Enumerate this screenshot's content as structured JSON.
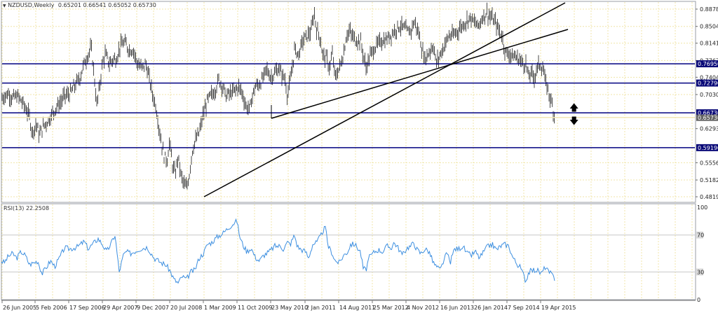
{
  "header": {
    "dropdown_icon": "triangle-down-icon",
    "symbol": "NZDUSD,Weekly",
    "open": "0.65201",
    "high": "0.66541",
    "low": "0.65052",
    "close": "0.65730"
  },
  "indicator": {
    "label": "RSI(13) 22.2508",
    "name": "RSI(13)",
    "value": "22.2508",
    "levels": [
      "100",
      "70",
      "30",
      "0"
    ]
  },
  "colors": {
    "background": "#ffffff",
    "grid": "#f0e6a8",
    "bars": "#4a4a4a",
    "hline": "#000080",
    "trendline": "#000000",
    "rsi": "#3d8fe0",
    "rsi_level": "#c8c8c8",
    "axis": "#9a9ea4",
    "label_bg": "#0a0a78",
    "price_label_bg": "#646464"
  },
  "chart_data": [
    {
      "type": "bar",
      "subtype": "ohlc",
      "title": "NZDUSD,Weekly",
      "ohlc_last": {
        "open": 0.65201,
        "high": 0.66541,
        "low": 0.65052,
        "close": 0.6573
      },
      "y_axis_ticks": [
        "0.88780",
        "0.85040",
        "0.81410",
        "0.77670",
        "0.74040",
        "0.70300",
        "0.62930",
        "0.55560",
        "0.51820",
        "0.48190"
      ],
      "ylim": [
        0.4819,
        0.8878
      ],
      "x_axis_ticks": [
        "26 Jun 2005",
        "5 Feb 2006",
        "17 Sep 2006",
        "29 Apr 2007",
        "9 Dec 2007",
        "20 Jul 2008",
        "1 Mar 2009",
        "11 Oct 2009",
        "23 May 2010",
        "2 Jan 2011",
        "14 Aug 2011",
        "25 Mar 2012",
        "4 Nov 2012",
        "16 Jun 2013",
        "26 Jan 2014",
        "7 Sep 2014",
        "19 Apr 2015"
      ],
      "horizontal_lines": [
        {
          "label": "0.76950",
          "value": 0.7695
        },
        {
          "label": "0.72790",
          "value": 0.7279
        },
        {
          "label": "0.66730",
          "value": 0.6673
        },
        {
          "label": "0.59190",
          "value": 0.5919
        }
      ],
      "current_price_label": "0.65730",
      "trendlines": [
        {
          "from_date": "Mar 2009",
          "from_price": 0.4875,
          "to_date": "mid 2015 (extended)",
          "to_price": 0.905
        },
        {
          "from_date": "May 2010",
          "from_price": 0.661,
          "to_date": "mid 2015 (extended)",
          "to_price": 0.845
        }
      ],
      "annotations": [
        "up-arrow at 0.6673 level",
        "down-arrow below 0.6673 level"
      ],
      "close_path": [
        [
          "2005-06",
          0.695
        ],
        [
          "2005-09",
          0.705
        ],
        [
          "2005-12",
          0.7
        ],
        [
          "2006-02",
          0.69
        ],
        [
          "2006-04",
          0.628
        ],
        [
          "2006-06",
          0.615
        ],
        [
          "2006-09",
          0.645
        ],
        [
          "2006-12",
          0.68
        ],
        [
          "2007-03",
          0.7
        ],
        [
          "2007-05",
          0.745
        ],
        [
          "2007-07",
          0.8
        ],
        [
          "2007-08",
          0.69
        ],
        [
          "2007-10",
          0.77
        ],
        [
          "2007-12",
          0.775
        ],
        [
          "2008-02",
          0.815
        ],
        [
          "2008-04",
          0.8
        ],
        [
          "2008-07",
          0.765
        ],
        [
          "2008-09",
          0.7
        ],
        [
          "2008-11",
          0.56
        ],
        [
          "2008-12",
          0.57
        ],
        [
          "2009-02",
          0.51
        ],
        [
          "2009-03",
          0.5
        ],
        [
          "2009-05",
          0.6
        ],
        [
          "2009-08",
          0.68
        ],
        [
          "2009-10",
          0.74
        ],
        [
          "2009-12",
          0.71
        ],
        [
          "2010-02",
          0.7
        ],
        [
          "2010-04",
          0.72
        ],
        [
          "2010-06",
          0.665
        ],
        [
          "2010-08",
          0.725
        ],
        [
          "2010-11",
          0.77
        ],
        [
          "2011-01",
          0.76
        ],
        [
          "2011-03",
          0.74
        ],
        [
          "2011-05",
          0.81
        ],
        [
          "2011-07",
          0.87
        ],
        [
          "2011-09",
          0.78
        ],
        [
          "2011-11",
          0.75
        ],
        [
          "2012-02",
          0.83
        ],
        [
          "2012-05",
          0.76
        ],
        [
          "2012-07",
          0.81
        ],
        [
          "2012-10",
          0.83
        ],
        [
          "2013-01",
          0.85
        ],
        [
          "2013-04",
          0.86
        ],
        [
          "2013-06",
          0.78
        ],
        [
          "2013-08",
          0.785
        ],
        [
          "2013-10",
          0.83
        ],
        [
          "2013-12",
          0.82
        ],
        [
          "2014-03",
          0.86
        ],
        [
          "2014-07",
          0.875
        ],
        [
          "2014-09",
          0.79
        ],
        [
          "2014-12",
          0.78
        ],
        [
          "2015-01",
          0.74
        ],
        [
          "2015-03",
          0.76
        ],
        [
          "2015-04",
          0.755
        ],
        [
          "2015-06",
          0.68
        ],
        [
          "2015-07",
          0.657
        ]
      ]
    },
    {
      "type": "line",
      "title": "RSI(13) 22.2508",
      "ylim": [
        0,
        100
      ],
      "levels": [
        30,
        70
      ],
      "y_axis_ticks": [
        "100",
        "70",
        "30",
        "0"
      ],
      "x": [
        "2005-06",
        "2006-02",
        "2006-06",
        "2007-02",
        "2007-06",
        "2007-11",
        "2008-03",
        "2008-07",
        "2008-10",
        "2009-01",
        "2009-04",
        "2009-08",
        "2009-11",
        "2010-03",
        "2010-06",
        "2010-10",
        "2011-01",
        "2011-05",
        "2011-08",
        "2011-11",
        "2012-03",
        "2012-06",
        "2012-10",
        "2013-02",
        "2013-04",
        "2013-07",
        "2013-10",
        "2014-01",
        "2014-05",
        "2014-08",
        "2014-11",
        "2015-01",
        "2015-03",
        "2015-05",
        "2015-07"
      ],
      "values": [
        55,
        60,
        35,
        62,
        78,
        65,
        55,
        40,
        18,
        25,
        50,
        62,
        82,
        55,
        50,
        58,
        68,
        78,
        50,
        55,
        50,
        25,
        55,
        60,
        58,
        40,
        55,
        62,
        65,
        30,
        42,
        38,
        50,
        30,
        22.25
      ]
    }
  ],
  "price_path": [
    [
      0,
      0.69
    ],
    [
      6,
      0.7
    ],
    [
      12,
      0.705
    ],
    [
      18,
      0.695
    ],
    [
      24,
      0.7
    ],
    [
      30,
      0.69
    ],
    [
      36,
      0.675
    ],
    [
      42,
      0.655
    ],
    [
      46,
      0.62
    ],
    [
      52,
      0.64
    ],
    [
      56,
      0.615
    ],
    [
      62,
      0.635
    ],
    [
      68,
      0.645
    ],
    [
      74,
      0.66
    ],
    [
      80,
      0.675
    ],
    [
      86,
      0.685
    ],
    [
      92,
      0.7
    ],
    [
      100,
      0.705
    ],
    [
      108,
      0.725
    ],
    [
      114,
      0.74
    ],
    [
      120,
      0.77
    ],
    [
      126,
      0.79
    ],
    [
      130,
      0.805
    ],
    [
      134,
      0.75
    ],
    [
      138,
      0.68
    ],
    [
      142,
      0.72
    ],
    [
      146,
      0.77
    ],
    [
      150,
      0.79
    ],
    [
      156,
      0.77
    ],
    [
      162,
      0.78
    ],
    [
      166,
      0.78
    ],
    [
      172,
      0.81
    ],
    [
      178,
      0.815
    ],
    [
      184,
      0.8
    ],
    [
      190,
      0.8
    ],
    [
      196,
      0.77
    ],
    [
      202,
      0.76
    ],
    [
      208,
      0.77
    ],
    [
      214,
      0.73
    ],
    [
      218,
      0.7
    ],
    [
      222,
      0.68
    ],
    [
      226,
      0.64
    ],
    [
      230,
      0.6
    ],
    [
      234,
      0.57
    ],
    [
      238,
      0.56
    ],
    [
      242,
      0.6
    ],
    [
      246,
      0.55
    ],
    [
      250,
      0.53
    ],
    [
      254,
      0.57
    ],
    [
      258,
      0.53
    ],
    [
      262,
      0.51
    ],
    [
      266,
      0.5
    ],
    [
      270,
      0.53
    ],
    [
      274,
      0.58
    ],
    [
      278,
      0.6
    ],
    [
      284,
      0.62
    ],
    [
      290,
      0.66
    ],
    [
      296,
      0.69
    ],
    [
      300,
      0.7
    ],
    [
      306,
      0.71
    ],
    [
      312,
      0.735
    ],
    [
      318,
      0.72
    ],
    [
      322,
      0.7
    ],
    [
      328,
      0.705
    ],
    [
      334,
      0.71
    ],
    [
      340,
      0.72
    ],
    [
      346,
      0.705
    ],
    [
      350,
      0.68
    ],
    [
      356,
      0.67
    ],
    [
      360,
      0.7
    ],
    [
      364,
      0.72
    ],
    [
      370,
      0.725
    ],
    [
      376,
      0.74
    ],
    [
      380,
      0.76
    ],
    [
      386,
      0.74
    ],
    [
      392,
      0.75
    ],
    [
      398,
      0.76
    ],
    [
      402,
      0.745
    ],
    [
      406,
      0.74
    ],
    [
      410,
      0.7
    ],
    [
      416,
      0.75
    ],
    [
      420,
      0.8
    ],
    [
      426,
      0.79
    ],
    [
      432,
      0.82
    ],
    [
      438,
      0.83
    ],
    [
      444,
      0.84
    ],
    [
      448,
      0.88
    ],
    [
      452,
      0.84
    ],
    [
      456,
      0.83
    ],
    [
      460,
      0.79
    ],
    [
      466,
      0.78
    ],
    [
      470,
      0.76
    ],
    [
      474,
      0.79
    ],
    [
      478,
      0.74
    ],
    [
      484,
      0.76
    ],
    [
      490,
      0.79
    ],
    [
      494,
      0.83
    ],
    [
      498,
      0.84
    ],
    [
      502,
      0.83
    ],
    [
      508,
      0.82
    ],
    [
      514,
      0.82
    ],
    [
      518,
      0.79
    ],
    [
      522,
      0.76
    ],
    [
      526,
      0.78
    ],
    [
      532,
      0.8
    ],
    [
      538,
      0.81
    ],
    [
      544,
      0.82
    ],
    [
      550,
      0.82
    ],
    [
      556,
      0.83
    ],
    [
      562,
      0.84
    ],
    [
      568,
      0.85
    ],
    [
      574,
      0.85
    ],
    [
      580,
      0.84
    ],
    [
      586,
      0.84
    ],
    [
      590,
      0.86
    ],
    [
      594,
      0.85
    ],
    [
      598,
      0.83
    ],
    [
      602,
      0.8
    ],
    [
      606,
      0.78
    ],
    [
      610,
      0.79
    ],
    [
      614,
      0.8
    ],
    [
      618,
      0.81
    ],
    [
      622,
      0.77
    ],
    [
      628,
      0.79
    ],
    [
      634,
      0.81
    ],
    [
      640,
      0.83
    ],
    [
      646,
      0.83
    ],
    [
      652,
      0.84
    ],
    [
      658,
      0.85
    ],
    [
      664,
      0.86
    ],
    [
      670,
      0.87
    ],
    [
      676,
      0.86
    ],
    [
      682,
      0.85
    ],
    [
      688,
      0.87
    ],
    [
      694,
      0.88
    ],
    [
      700,
      0.87
    ],
    [
      706,
      0.86
    ],
    [
      712,
      0.84
    ],
    [
      716,
      0.83
    ],
    [
      720,
      0.8
    ],
    [
      724,
      0.79
    ],
    [
      728,
      0.79
    ],
    [
      734,
      0.785
    ],
    [
      740,
      0.78
    ],
    [
      746,
      0.77
    ],
    [
      750,
      0.77
    ],
    [
      754,
      0.74
    ],
    [
      758,
      0.75
    ],
    [
      762,
      0.74
    ],
    [
      766,
      0.76
    ],
    [
      770,
      0.77
    ],
    [
      774,
      0.76
    ],
    [
      778,
      0.73
    ],
    [
      782,
      0.71
    ],
    [
      786,
      0.69
    ],
    [
      790,
      0.66
    ]
  ],
  "rsi_path": [
    [
      2,
      42
    ],
    [
      6,
      40
    ],
    [
      12,
      47
    ],
    [
      18,
      50
    ],
    [
      24,
      45
    ],
    [
      30,
      52
    ],
    [
      36,
      48
    ],
    [
      42,
      38
    ],
    [
      48,
      40
    ],
    [
      54,
      42
    ],
    [
      60,
      28
    ],
    [
      66,
      35
    ],
    [
      72,
      42
    ],
    [
      78,
      36
    ],
    [
      84,
      44
    ],
    [
      92,
      56
    ],
    [
      100,
      55
    ],
    [
      110,
      57
    ],
    [
      120,
      63
    ],
    [
      126,
      55
    ],
    [
      132,
      60
    ],
    [
      140,
      66
    ],
    [
      146,
      60
    ],
    [
      152,
      52
    ],
    [
      158,
      60
    ],
    [
      164,
      70
    ],
    [
      170,
      30
    ],
    [
      176,
      48
    ],
    [
      180,
      52
    ],
    [
      186,
      50
    ],
    [
      194,
      53
    ],
    [
      200,
      55
    ],
    [
      210,
      57
    ],
    [
      220,
      45
    ],
    [
      230,
      40
    ],
    [
      236,
      38
    ],
    [
      242,
      32
    ],
    [
      248,
      22
    ],
    [
      254,
      18
    ],
    [
      260,
      25
    ],
    [
      266,
      22
    ],
    [
      272,
      30
    ],
    [
      278,
      32
    ],
    [
      284,
      45
    ],
    [
      290,
      50
    ],
    [
      296,
      60
    ],
    [
      302,
      62
    ],
    [
      310,
      68
    ],
    [
      318,
      72
    ],
    [
      326,
      78
    ],
    [
      332,
      82
    ],
    [
      338,
      85
    ],
    [
      342,
      68
    ],
    [
      346,
      60
    ],
    [
      352,
      52
    ],
    [
      358,
      56
    ],
    [
      364,
      46
    ],
    [
      370,
      42
    ],
    [
      376,
      48
    ],
    [
      384,
      52
    ],
    [
      392,
      58
    ],
    [
      400,
      58
    ],
    [
      404,
      55
    ],
    [
      410,
      62
    ],
    [
      414,
      60
    ],
    [
      420,
      70
    ],
    [
      424,
      58
    ],
    [
      428,
      55
    ],
    [
      436,
      52
    ],
    [
      440,
      45
    ],
    [
      446,
      60
    ],
    [
      452,
      62
    ],
    [
      458,
      70
    ],
    [
      460,
      74
    ],
    [
      464,
      78
    ],
    [
      468,
      58
    ],
    [
      474,
      50
    ],
    [
      478,
      42
    ],
    [
      484,
      40
    ],
    [
      490,
      48
    ],
    [
      496,
      52
    ],
    [
      500,
      60
    ],
    [
      506,
      60
    ],
    [
      510,
      56
    ],
    [
      514,
      52
    ],
    [
      518,
      34
    ],
    [
      522,
      32
    ],
    [
      526,
      45
    ],
    [
      534,
      52
    ],
    [
      540,
      54
    ],
    [
      546,
      52
    ],
    [
      552,
      58
    ],
    [
      558,
      56
    ],
    [
      562,
      62
    ],
    [
      568,
      56
    ],
    [
      574,
      48
    ],
    [
      580,
      56
    ],
    [
      586,
      58
    ],
    [
      590,
      62
    ],
    [
      594,
      55
    ],
    [
      600,
      50
    ],
    [
      606,
      55
    ],
    [
      612,
      52
    ],
    [
      618,
      40
    ],
    [
      622,
      36
    ],
    [
      628,
      32
    ],
    [
      634,
      45
    ],
    [
      638,
      50
    ],
    [
      642,
      40
    ],
    [
      648,
      55
    ],
    [
      654,
      55
    ],
    [
      660,
      58
    ],
    [
      666,
      50
    ],
    [
      672,
      48
    ],
    [
      678,
      52
    ],
    [
      684,
      45
    ],
    [
      690,
      52
    ],
    [
      696,
      58
    ],
    [
      702,
      60
    ],
    [
      708,
      54
    ],
    [
      714,
      58
    ],
    [
      720,
      60
    ],
    [
      726,
      58
    ],
    [
      730,
      48
    ],
    [
      736,
      40
    ],
    [
      742,
      35
    ],
    [
      746,
      28
    ],
    [
      750,
      20
    ],
    [
      754,
      30
    ],
    [
      760,
      32
    ],
    [
      766,
      32
    ],
    [
      772,
      28
    ],
    [
      778,
      36
    ],
    [
      782,
      30
    ],
    [
      786,
      28
    ],
    [
      792,
      22
    ]
  ]
}
